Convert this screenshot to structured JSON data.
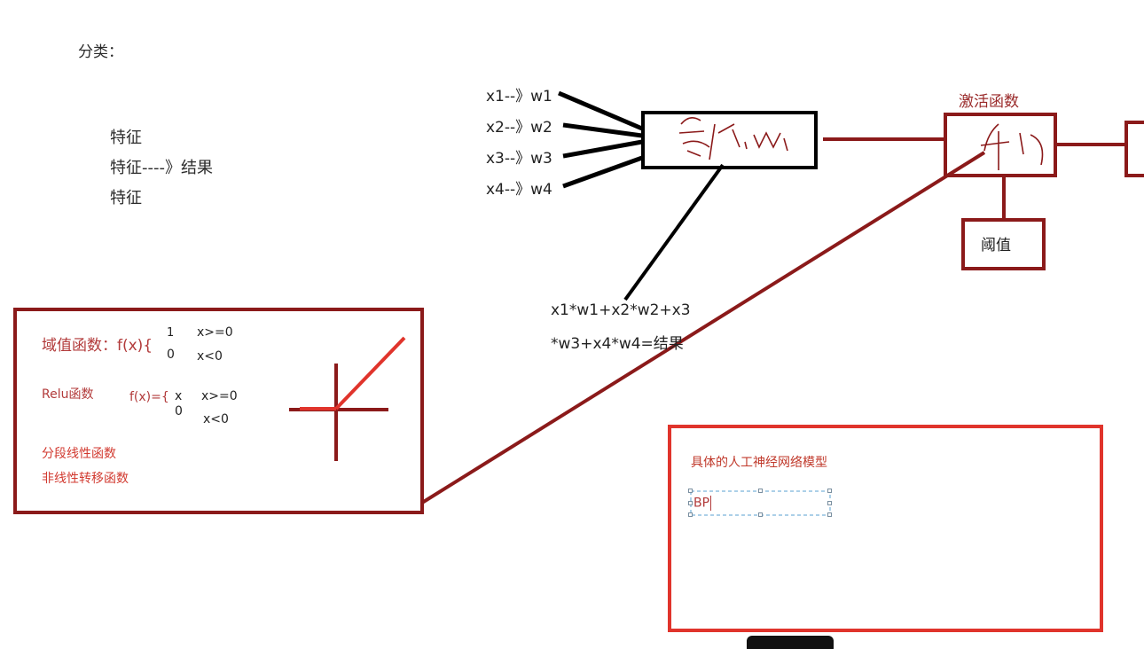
{
  "title": "分类：",
  "features": {
    "line1": "特征",
    "line2": "特征----》结果",
    "line3": "特征"
  },
  "inputs": [
    "x1--》w1",
    "x2--》w2",
    "x3--》w3",
    "x4--》w4"
  ],
  "formula": {
    "line1": "x1*w1+x2*w2+x3",
    "line2": "*w3+x4*w4=结果"
  },
  "activation": {
    "label": "激活函数",
    "threshold": "阈值"
  },
  "functions_panel": {
    "threshold_fn": "域值函数：f(x){",
    "threshold_case1_val": "1",
    "threshold_case1_cond": "x>=0",
    "threshold_case2_val": "0",
    "threshold_case2_cond": "x<0",
    "relu_label": "Relu函数",
    "relu_fn": "f(x)={",
    "relu_case1_val": "x",
    "relu_case1_cond": "x>=0",
    "relu_case2_val": "0",
    "relu_case2_cond": "x<0",
    "piecewise": "分段线性函数",
    "nonlinear": "非线性转移函数"
  },
  "model_panel": {
    "title": "具体的人工神经网络模型",
    "input_text": "BP"
  },
  "colors": {
    "dark_red": "#8b1a1a",
    "bright_red": "#e0342c",
    "black": "#000000",
    "text_red": "#b23a3a"
  }
}
